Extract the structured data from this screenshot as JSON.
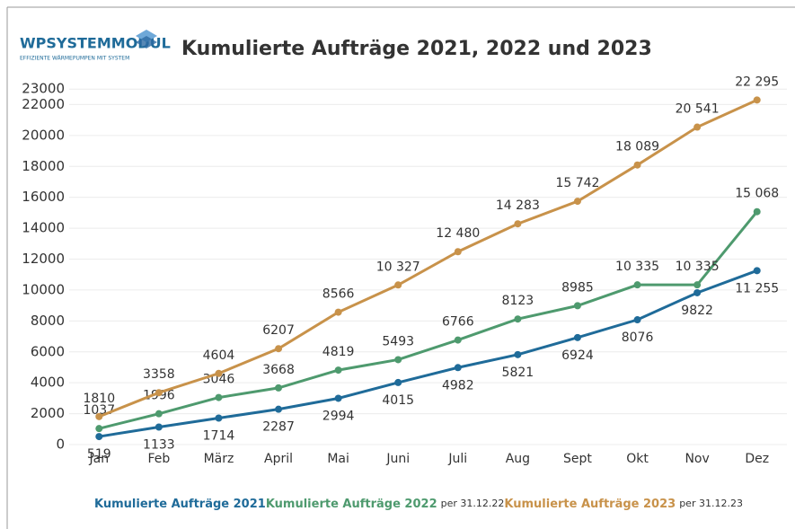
{
  "logo": {
    "name": "WPSYSTEMMODUL",
    "tagline": "EFFIZIENTE WÄRMEPUMPEN MIT SYSTEM"
  },
  "chart_data": {
    "type": "line",
    "title": "Kumulierte Aufträge 2021, 2022 und 2023",
    "categories": [
      "Jan",
      "Feb",
      "März",
      "April",
      "Mai",
      "Juni",
      "Juli",
      "Aug",
      "Sept",
      "Okt",
      "Nov",
      "Dez"
    ],
    "ylim": [
      0,
      24000
    ],
    "yticks": [
      0,
      2000,
      4000,
      6000,
      8000,
      10000,
      12000,
      14000,
      16000,
      18000,
      20000,
      22000,
      23000
    ],
    "grid": true,
    "series": [
      {
        "name": "Kumulierte Aufträge 2021",
        "color": "#1f6b99",
        "values": [
          519,
          1133,
          1714,
          2287,
          2994,
          4015,
          4982,
          5821,
          6924,
          8076,
          9822,
          11255
        ],
        "value_labels": [
          "519",
          "1133",
          "1714",
          "2287",
          "2994",
          "4015",
          "4982",
          "5821",
          "6924",
          "8076",
          "9822",
          "11 255"
        ]
      },
      {
        "name": "Kumulierte Aufträge 2022",
        "note": "per 31.12.22",
        "color": "#4e9a6e",
        "values": [
          1037,
          1996,
          3046,
          3668,
          4819,
          5493,
          6766,
          8123,
          8985,
          10335,
          10335,
          15068
        ],
        "value_labels": [
          "1037",
          "1996",
          "3046",
          "3668",
          "4819",
          "5493",
          "6766",
          "8123",
          "8985",
          "10 335",
          "10 335",
          "15 068"
        ]
      },
      {
        "name": "Kumulierte Aufträge 2023",
        "note": "per 31.12.23",
        "color": "#c8924a",
        "values": [
          1810,
          3358,
          4604,
          6207,
          8566,
          10327,
          12480,
          14283,
          15742,
          18089,
          20541,
          22295
        ],
        "value_labels": [
          "1810",
          "3358",
          "4604",
          "6207",
          "8566",
          "10 327",
          "12 480",
          "14 283",
          "15 742",
          "18 089",
          "20 541",
          "22 295"
        ]
      }
    ]
  }
}
